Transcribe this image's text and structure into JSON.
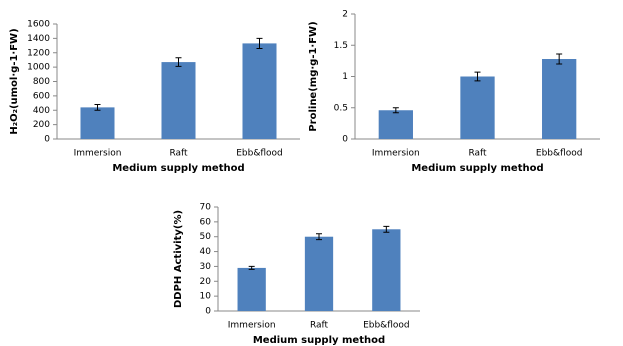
{
  "chart_data": [
    {
      "type": "bar",
      "y_label": "H₂O₂(umol·g-1·FW)",
      "x_label": "Medium supply method",
      "categories": [
        "Immersion",
        "Raft",
        "Ebb&flood"
      ],
      "values": [
        440,
        1070,
        1330
      ],
      "errors": [
        40,
        60,
        70
      ],
      "color": "#4f81bd",
      "ylim": [
        0,
        1600
      ],
      "yticks": [
        0,
        200,
        400,
        600,
        800,
        1000,
        1200,
        1400,
        1600
      ]
    },
    {
      "type": "bar",
      "y_label": "Proline(mg·g-1·FW)",
      "x_label": "Medium supply method",
      "categories": [
        "Immersion",
        "Raft",
        "Ebb&flood"
      ],
      "values": [
        0.46,
        1.0,
        1.28
      ],
      "errors": [
        0.04,
        0.07,
        0.08
      ],
      "color": "#4f81bd",
      "ylim": [
        0,
        2
      ],
      "yticks": [
        0,
        0.5,
        1,
        1.5,
        2
      ]
    },
    {
      "type": "bar",
      "y_label": "DDPH Activity(%)",
      "x_label": "Medium supply method",
      "categories": [
        "Immersion",
        "Raft",
        "Ebb&flood"
      ],
      "values": [
        29,
        50,
        55
      ],
      "errors": [
        1,
        2,
        2
      ],
      "color": "#4f81bd",
      "ylim": [
        0,
        70
      ],
      "yticks": [
        0,
        10,
        20,
        30,
        40,
        50,
        60,
        70
      ]
    }
  ]
}
